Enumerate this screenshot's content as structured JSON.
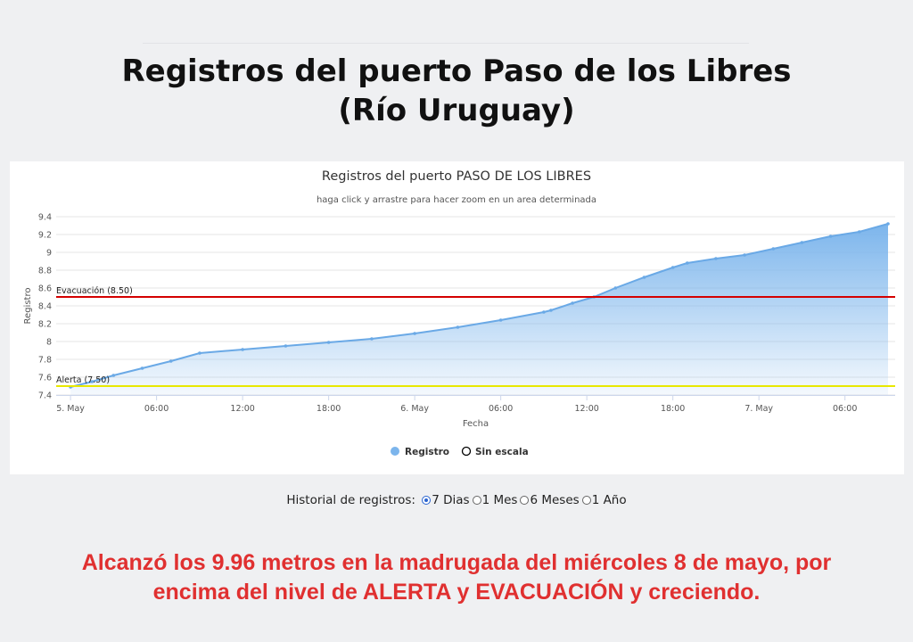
{
  "page": {
    "headline_line1": "Registros del puerto Paso de los Libres",
    "headline_line2": "(Río Uruguay)",
    "footnote_line1": "Alcanzó los 9.96 metros en la madrugada del miércoles 8 de mayo, por",
    "footnote_line2": "encima del nivel de ALERTA y EVACUACIÓN y creciendo."
  },
  "history": {
    "label": "Historial de registros:",
    "options": [
      {
        "label": "7 Dias",
        "selected": true
      },
      {
        "label": "1 Mes",
        "selected": false
      },
      {
        "label": "6 Meses",
        "selected": false
      },
      {
        "label": "1 Año",
        "selected": false
      }
    ]
  },
  "chart_data": {
    "type": "area",
    "title": "Registros del puerto PASO DE LOS LIBRES",
    "subtitle": "haga click y arrastre para hacer zoom en un area determinada",
    "xlabel": "Fecha",
    "ylabel": "Registro",
    "ylim": [
      7.4,
      9.4
    ],
    "yticks": [
      "7.4",
      "7.6",
      "7.8",
      "8",
      "8.2",
      "8.4",
      "8.6",
      "8.8",
      "9",
      "9.2",
      "9.4"
    ],
    "xlim_hours": [
      -1,
      57.5
    ],
    "xticks": [
      {
        "h": 0,
        "label": "5. May"
      },
      {
        "h": 6,
        "label": "06:00"
      },
      {
        "h": 12,
        "label": "12:00"
      },
      {
        "h": 18,
        "label": "18:00"
      },
      {
        "h": 24,
        "label": "6. May"
      },
      {
        "h": 30,
        "label": "06:00"
      },
      {
        "h": 36,
        "label": "12:00"
      },
      {
        "h": 42,
        "label": "18:00"
      },
      {
        "h": 48,
        "label": "7. May"
      },
      {
        "h": 54,
        "label": "06:00"
      }
    ],
    "series": [
      {
        "name": "Registro",
        "color": "#7cb5ec",
        "points": [
          [
            0,
            7.49
          ],
          [
            1.5,
            7.55
          ],
          [
            3,
            7.62
          ],
          [
            5,
            7.7
          ],
          [
            7,
            7.78
          ],
          [
            9,
            7.87
          ],
          [
            12,
            7.91
          ],
          [
            15,
            7.95
          ],
          [
            18,
            7.99
          ],
          [
            21,
            8.03
          ],
          [
            24,
            8.09
          ],
          [
            27,
            8.16
          ],
          [
            30,
            8.24
          ],
          [
            33,
            8.33
          ],
          [
            33.5,
            8.35
          ],
          [
            35,
            8.43
          ],
          [
            36.5,
            8.5
          ],
          [
            38,
            8.6
          ],
          [
            40,
            8.72
          ],
          [
            42,
            8.83
          ],
          [
            43,
            8.88
          ],
          [
            45,
            8.93
          ],
          [
            47,
            8.97
          ],
          [
            49,
            9.04
          ],
          [
            51,
            9.11
          ],
          [
            53,
            9.18
          ],
          [
            55,
            9.23
          ],
          [
            57,
            9.32
          ]
        ]
      },
      {
        "name": "Sin escala",
        "color": "#000000",
        "points": []
      }
    ],
    "plot_lines": [
      {
        "label": "Evacuación (8.50)",
        "value": 8.5,
        "color": "#d40000"
      },
      {
        "label": "Alerta (7.50)",
        "value": 7.5,
        "color": "#e8e800"
      }
    ],
    "grid": true,
    "legend_position": "bottom-center"
  }
}
